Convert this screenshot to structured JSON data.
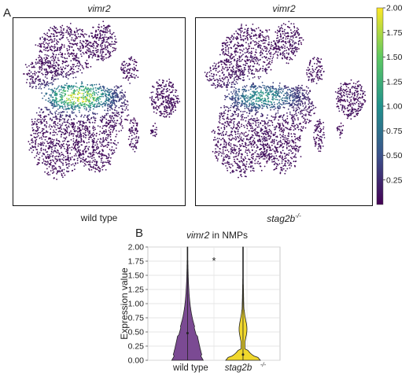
{
  "panel_a": {
    "letter": "A",
    "gene": "vimr2",
    "left_caption": "wild type",
    "right_caption": "stag2b",
    "right_caption_sup": "-/-"
  },
  "colorbar": {
    "ticks": [
      "2.00",
      "1.75",
      "1.50",
      "1.25",
      "1.00",
      "0.75",
      "0.50",
      "0.25"
    ],
    "colors": [
      "#440154",
      "#3b528b",
      "#21918c",
      "#5ec962",
      "#fde725"
    ]
  },
  "panel_b": {
    "letter": "B",
    "title_gene": "vimr2",
    "title_rest": " in NMPs",
    "significance": "*",
    "xsup": "-/-"
  },
  "chart_data": [
    {
      "type": "scatter",
      "title": "vimr2",
      "caption": "wild type",
      "description": "UMAP embedding coloured by vimr2 expression (viridis, 0–2.0); high expression band in the central cluster"
    },
    {
      "type": "scatter",
      "title": "vimr2",
      "caption": "stag2b-/-",
      "description": "UMAP embedding coloured by vimr2 expression (viridis, 0–2.0); reduced central expression"
    },
    {
      "type": "violin",
      "title": "vimr2 in NMPs",
      "ylabel": "Expression value",
      "ylim": [
        0,
        2.0
      ],
      "yticks": [
        "0.00",
        "0.25",
        "0.50",
        "0.75",
        "1.00",
        "1.25",
        "1.50",
        "1.75",
        "2.00"
      ],
      "categories": [
        "wild type",
        "stag2b"
      ],
      "colors": [
        "#7b4a93",
        "#f1d82c"
      ],
      "median": [
        0.48,
        0.1
      ],
      "max": [
        2.0,
        2.0
      ]
    }
  ]
}
